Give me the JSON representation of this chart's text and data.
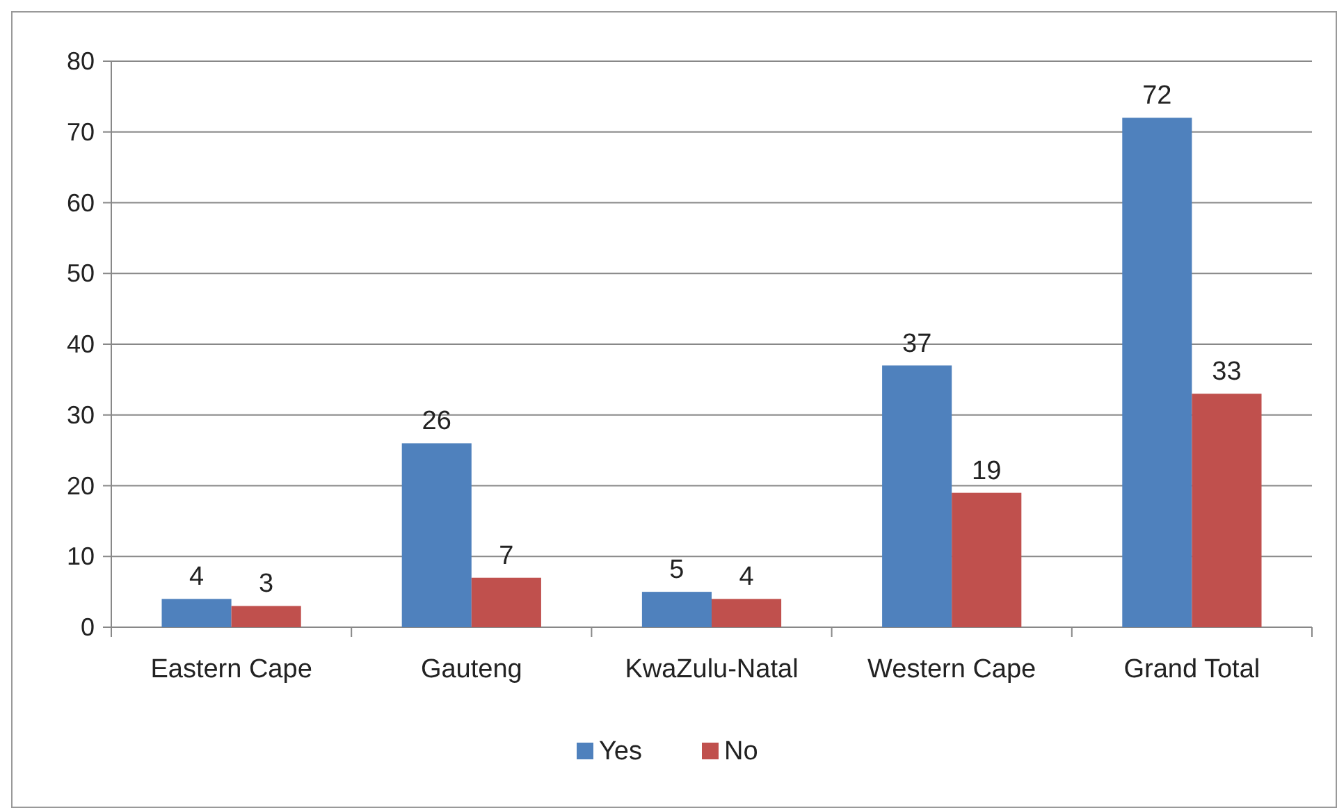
{
  "chart_data": {
    "type": "bar",
    "categories": [
      "Eastern Cape",
      "Gauteng",
      "KwaZulu-Natal",
      "Western Cape",
      "Grand Total"
    ],
    "series": [
      {
        "name": "Yes",
        "color": "#4f81bd",
        "values": [
          4,
          26,
          5,
          37,
          72
        ]
      },
      {
        "name": "No",
        "color": "#c0504d",
        "values": [
          3,
          7,
          4,
          19,
          33
        ]
      }
    ],
    "ylim": [
      0,
      80
    ],
    "yticks": [
      0,
      10,
      20,
      30,
      40,
      50,
      60,
      70,
      80
    ],
    "grid": "y",
    "legend": "bottom",
    "data_labels": true
  }
}
